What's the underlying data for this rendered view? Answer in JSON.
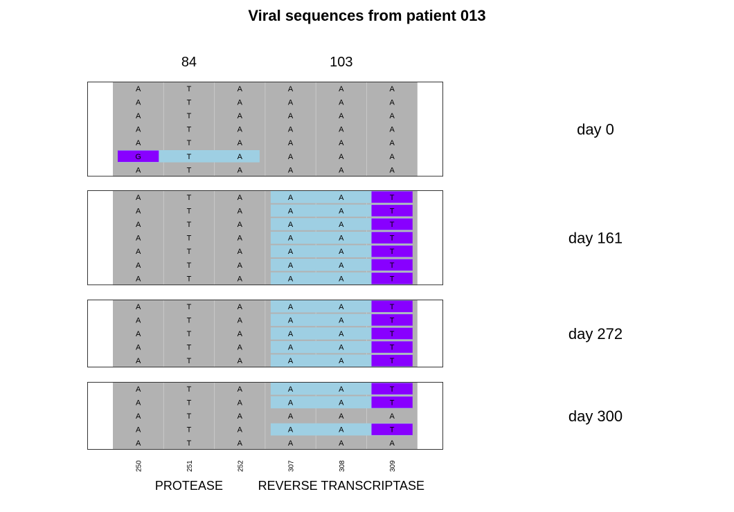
{
  "chart_data": {
    "type": "heatmap",
    "title": "Viral sequences from patient 013",
    "positions": [
      "250",
      "251",
      "252",
      "307",
      "308",
      "309"
    ],
    "codon_labels": [
      {
        "label": "84",
        "position_index": 1
      },
      {
        "label": "103",
        "position_index": 4
      }
    ],
    "regions": [
      {
        "name": "PROTEASE",
        "position_indices": [
          0,
          1,
          2
        ]
      },
      {
        "name": "REVERSE TRANSCRIPTASE",
        "position_indices": [
          3,
          4,
          5
        ]
      }
    ],
    "colors": {
      "consensus": "#b2b2b2",
      "mutated_codon": "#9ecfe3",
      "mutated_base": "#8800ff",
      "separator": "#c8c8c8"
    },
    "panels": [
      {
        "day": "day 0",
        "sequences": [
          {
            "bases": [
              "A",
              "T",
              "A",
              "A",
              "A",
              "A"
            ],
            "codon_highlight": [],
            "mutations": []
          },
          {
            "bases": [
              "A",
              "T",
              "A",
              "A",
              "A",
              "A"
            ],
            "codon_highlight": [],
            "mutations": []
          },
          {
            "bases": [
              "A",
              "T",
              "A",
              "A",
              "A",
              "A"
            ],
            "codon_highlight": [],
            "mutations": []
          },
          {
            "bases": [
              "A",
              "T",
              "A",
              "A",
              "A",
              "A"
            ],
            "codon_highlight": [],
            "mutations": []
          },
          {
            "bases": [
              "A",
              "T",
              "A",
              "A",
              "A",
              "A"
            ],
            "codon_highlight": [],
            "mutations": []
          },
          {
            "bases": [
              "G",
              "T",
              "A",
              "A",
              "A",
              "A"
            ],
            "codon_highlight": [
              0,
              1,
              2
            ],
            "mutations": [
              0
            ]
          },
          {
            "bases": [
              "A",
              "T",
              "A",
              "A",
              "A",
              "A"
            ],
            "codon_highlight": [],
            "mutations": []
          }
        ]
      },
      {
        "day": "day 161",
        "sequences": [
          {
            "bases": [
              "A",
              "T",
              "A",
              "A",
              "A",
              "T"
            ],
            "codon_highlight": [
              3,
              4,
              5
            ],
            "mutations": [
              5
            ]
          },
          {
            "bases": [
              "A",
              "T",
              "A",
              "A",
              "A",
              "T"
            ],
            "codon_highlight": [
              3,
              4,
              5
            ],
            "mutations": [
              5
            ]
          },
          {
            "bases": [
              "A",
              "T",
              "A",
              "A",
              "A",
              "T"
            ],
            "codon_highlight": [
              3,
              4,
              5
            ],
            "mutations": [
              5
            ]
          },
          {
            "bases": [
              "A",
              "T",
              "A",
              "A",
              "A",
              "T"
            ],
            "codon_highlight": [
              3,
              4,
              5
            ],
            "mutations": [
              5
            ]
          },
          {
            "bases": [
              "A",
              "T",
              "A",
              "A",
              "A",
              "T"
            ],
            "codon_highlight": [
              3,
              4,
              5
            ],
            "mutations": [
              5
            ]
          },
          {
            "bases": [
              "A",
              "T",
              "A",
              "A",
              "A",
              "T"
            ],
            "codon_highlight": [
              3,
              4,
              5
            ],
            "mutations": [
              5
            ]
          },
          {
            "bases": [
              "A",
              "T",
              "A",
              "A",
              "A",
              "T"
            ],
            "codon_highlight": [
              3,
              4,
              5
            ],
            "mutations": [
              5
            ]
          }
        ]
      },
      {
        "day": "day 272",
        "sequences": [
          {
            "bases": [
              "A",
              "T",
              "A",
              "A",
              "A",
              "T"
            ],
            "codon_highlight": [
              3,
              4,
              5
            ],
            "mutations": [
              5
            ]
          },
          {
            "bases": [
              "A",
              "T",
              "A",
              "A",
              "A",
              "T"
            ],
            "codon_highlight": [
              3,
              4,
              5
            ],
            "mutations": [
              5
            ]
          },
          {
            "bases": [
              "A",
              "T",
              "A",
              "A",
              "A",
              "T"
            ],
            "codon_highlight": [
              3,
              4,
              5
            ],
            "mutations": [
              5
            ]
          },
          {
            "bases": [
              "A",
              "T",
              "A",
              "A",
              "A",
              "T"
            ],
            "codon_highlight": [
              3,
              4,
              5
            ],
            "mutations": [
              5
            ]
          },
          {
            "bases": [
              "A",
              "T",
              "A",
              "A",
              "A",
              "T"
            ],
            "codon_highlight": [
              3,
              4,
              5
            ],
            "mutations": [
              5
            ]
          }
        ]
      },
      {
        "day": "day 300",
        "sequences": [
          {
            "bases": [
              "A",
              "T",
              "A",
              "A",
              "A",
              "T"
            ],
            "codon_highlight": [
              3,
              4,
              5
            ],
            "mutations": [
              5
            ]
          },
          {
            "bases": [
              "A",
              "T",
              "A",
              "A",
              "A",
              "T"
            ],
            "codon_highlight": [
              3,
              4,
              5
            ],
            "mutations": [
              5
            ]
          },
          {
            "bases": [
              "A",
              "T",
              "A",
              "A",
              "A",
              "A"
            ],
            "codon_highlight": [],
            "mutations": []
          },
          {
            "bases": [
              "A",
              "T",
              "A",
              "A",
              "A",
              "T"
            ],
            "codon_highlight": [
              3,
              4,
              5
            ],
            "mutations": [
              5
            ]
          },
          {
            "bases": [
              "A",
              "T",
              "A",
              "A",
              "A",
              "A"
            ],
            "codon_highlight": [],
            "mutations": []
          }
        ]
      }
    ]
  }
}
